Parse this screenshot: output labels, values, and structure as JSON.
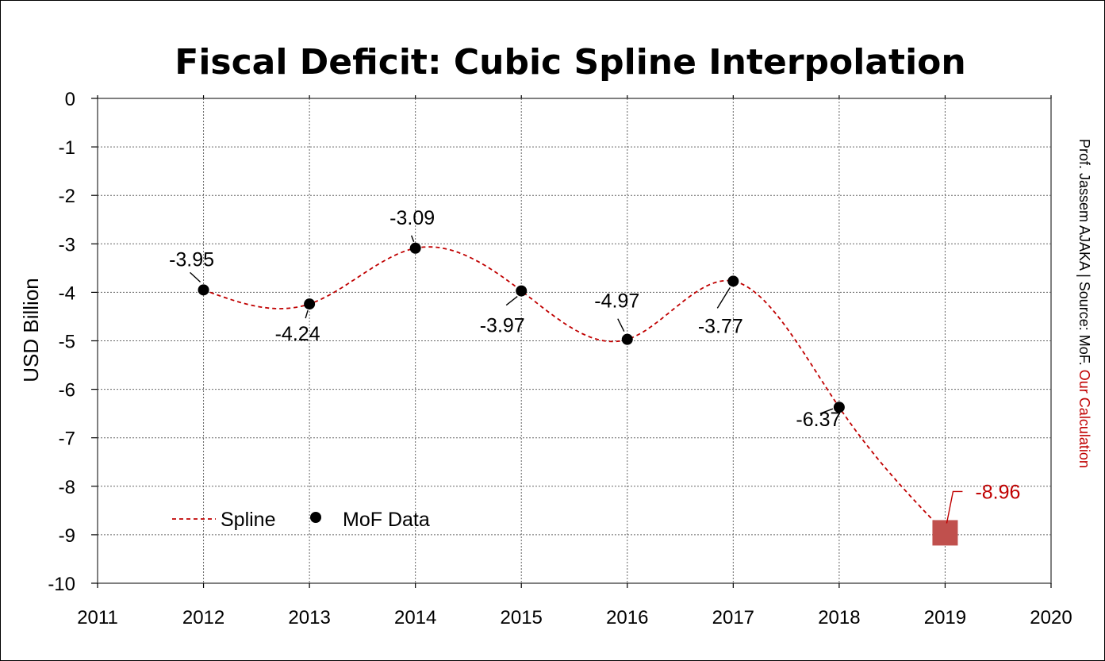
{
  "chart_data": {
    "type": "line",
    "title": "Fiscal Deficit: Cubic Spline Interpolation",
    "ylabel": "USD Billion",
    "xlim": [
      2011,
      2020
    ],
    "ylim": [
      -10,
      0
    ],
    "x_ticks": [
      2011,
      2012,
      2013,
      2014,
      2015,
      2016,
      2017,
      2018,
      2019,
      2020
    ],
    "y_ticks": [
      0,
      -1,
      -2,
      -3,
      -4,
      -5,
      -6,
      -7,
      -8,
      -9,
      -10
    ],
    "grid": true,
    "legend_position": "bottom-left",
    "series": [
      {
        "name": "Spline",
        "style": "dashed-line",
        "color": "#c00000",
        "x": [
          2012,
          2013,
          2014,
          2015,
          2016,
          2017,
          2018,
          2019
        ],
        "y": [
          -3.95,
          -4.24,
          -3.09,
          -3.97,
          -4.97,
          -3.77,
          -6.37,
          -8.96
        ]
      },
      {
        "name": "MoF Data",
        "style": "markers",
        "color": "#000000",
        "x": [
          2012,
          2013,
          2014,
          2015,
          2016,
          2017,
          2018
        ],
        "y": [
          -3.95,
          -4.24,
          -3.09,
          -3.97,
          -4.97,
          -3.77,
          -6.37
        ],
        "labels": [
          "-3.95",
          "-4.24",
          "-3.09",
          "-3.97",
          "-4.97",
          "-3.77",
          "-6.37"
        ]
      }
    ],
    "highlight": {
      "x": 2019,
      "y": -8.96,
      "label": "-8.96",
      "color": "#c0504d"
    },
    "credit": {
      "prefix": "Prof. Jassem AJAKA | Source: MoF. ",
      "highlight": "Our Calculation",
      "highlight_color": "#c00000"
    }
  }
}
